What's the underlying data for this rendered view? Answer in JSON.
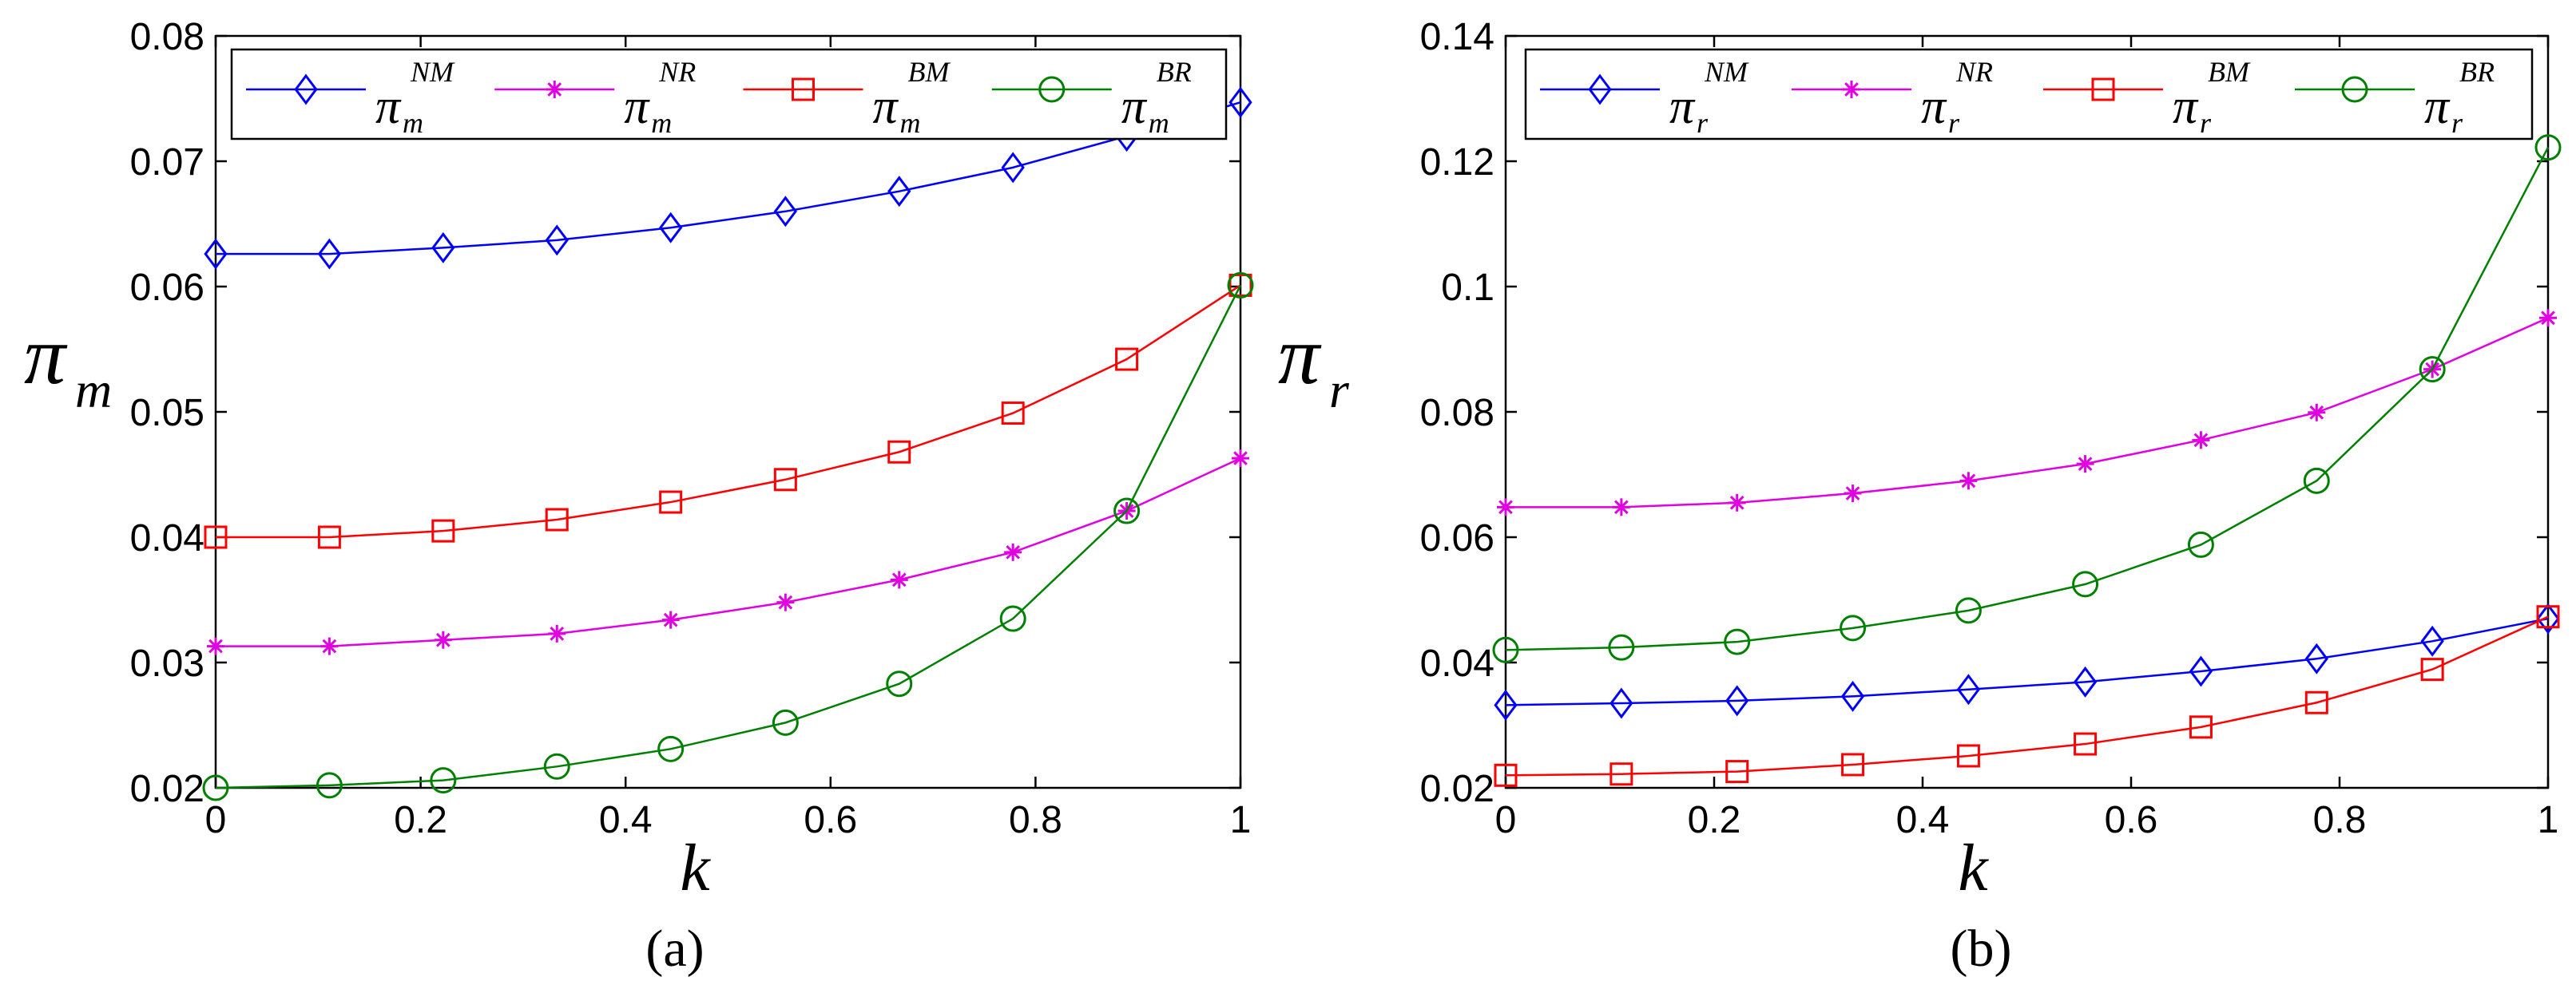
{
  "chart_data": [
    {
      "type": "line",
      "caption": "(a)",
      "xlabel": "k",
      "ylabel": {
        "base": "π",
        "sub": "m"
      },
      "xlim": [
        0,
        1
      ],
      "ylim": [
        0.02,
        0.08
      ],
      "xticks": [
        "0",
        "0.2",
        "0.4",
        "0.6",
        "0.8",
        "1"
      ],
      "yticks": [
        "0.02",
        "0.03",
        "0.04",
        "0.05",
        "0.06",
        "0.07",
        "0.08"
      ],
      "x": [
        0,
        0.111,
        0.222,
        0.333,
        0.444,
        0.556,
        0.667,
        0.778,
        0.889,
        1.0
      ],
      "legend_position": "top",
      "series": [
        {
          "name": "NM",
          "base": "π",
          "sub": "m",
          "sup": "NM",
          "marker": "diamond",
          "color": "#0000ff",
          "values": [
            0.0626,
            0.0626,
            0.0631,
            0.0637,
            0.0647,
            0.066,
            0.0676,
            0.0695,
            0.072,
            0.0747
          ]
        },
        {
          "name": "NR",
          "base": "π",
          "sub": "m",
          "sup": "NR",
          "marker": "star",
          "color": "#e000e0",
          "values": [
            0.0313,
            0.0313,
            0.0318,
            0.0323,
            0.0334,
            0.0348,
            0.0366,
            0.0388,
            0.0421,
            0.0463
          ]
        },
        {
          "name": "BM",
          "base": "π",
          "sub": "m",
          "sup": "BM",
          "marker": "square",
          "color": "#ff0000",
          "values": [
            0.04,
            0.04,
            0.0405,
            0.0414,
            0.0428,
            0.0446,
            0.0468,
            0.0499,
            0.0542,
            0.0601
          ]
        },
        {
          "name": "BR",
          "base": "π",
          "sub": "m",
          "sup": "BR",
          "marker": "circle",
          "color": "#008000",
          "values": [
            0.02,
            0.0202,
            0.0206,
            0.0217,
            0.0231,
            0.0252,
            0.0283,
            0.0335,
            0.0421,
            0.0601
          ]
        }
      ]
    },
    {
      "type": "line",
      "caption": "(b)",
      "xlabel": "k",
      "ylabel": {
        "base": "π",
        "sub": "r"
      },
      "xlim": [
        0,
        1
      ],
      "ylim": [
        0.02,
        0.14
      ],
      "xticks": [
        "0",
        "0.2",
        "0.4",
        "0.6",
        "0.8",
        "1"
      ],
      "yticks": [
        "0.02",
        "0.04",
        "0.06",
        "0.08",
        "0.1",
        "0.12",
        "0.14"
      ],
      "x": [
        0,
        0.111,
        0.222,
        0.333,
        0.444,
        0.556,
        0.667,
        0.778,
        0.889,
        1.0
      ],
      "legend_position": "top",
      "series": [
        {
          "name": "NM",
          "base": "π",
          "sub": "r",
          "sup": "NM",
          "marker": "diamond",
          "color": "#0000ff",
          "values": [
            0.0332,
            0.0335,
            0.0339,
            0.0346,
            0.0357,
            0.0369,
            0.0386,
            0.0406,
            0.0434,
            0.047
          ]
        },
        {
          "name": "NR",
          "base": "π",
          "sub": "r",
          "sup": "NR",
          "marker": "star",
          "color": "#e000e0",
          "values": [
            0.0648,
            0.0648,
            0.0655,
            0.067,
            0.069,
            0.0717,
            0.0755,
            0.0799,
            0.0868,
            0.095
          ]
        },
        {
          "name": "BM",
          "base": "π",
          "sub": "r",
          "sup": "BM",
          "marker": "square",
          "color": "#ff0000",
          "values": [
            0.022,
            0.0222,
            0.0226,
            0.0237,
            0.0251,
            0.027,
            0.0297,
            0.0336,
            0.0389,
            0.0473
          ]
        },
        {
          "name": "BR",
          "base": "π",
          "sub": "r",
          "sup": "BR",
          "marker": "circle",
          "color": "#008000",
          "values": [
            0.042,
            0.0424,
            0.0433,
            0.0455,
            0.0483,
            0.0525,
            0.0588,
            0.069,
            0.0868,
            0.1222
          ]
        }
      ]
    }
  ]
}
